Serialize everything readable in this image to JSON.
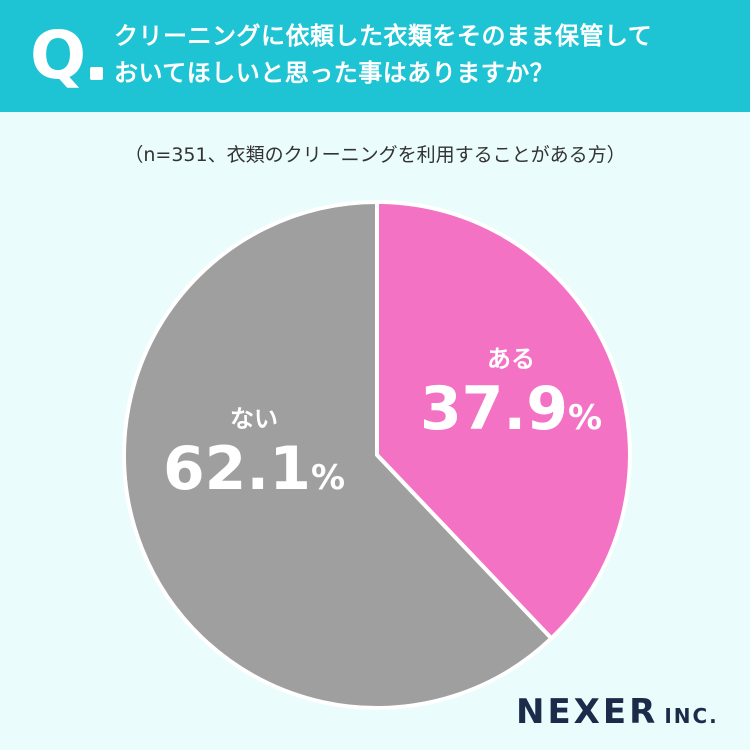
{
  "header": {
    "q_mark": "Q",
    "question_line1": "クリーニングに依頼した衣類をそのまま保管して",
    "question_line2": "おいてほしいと思った事はありますか？"
  },
  "subtitle": "（n=351、衣類のクリーニングを利用することがある方）",
  "chart_data": {
    "type": "pie",
    "categories": [
      "ある",
      "ない"
    ],
    "values": [
      37.9,
      62.1
    ],
    "labels": [
      "37.9",
      "62.1"
    ],
    "unit": "%",
    "colors": [
      "#f472c4",
      "#9f9f9f"
    ],
    "start": "top, clockwise"
  },
  "logo": {
    "main": "NEXER",
    "sub": "INC."
  }
}
